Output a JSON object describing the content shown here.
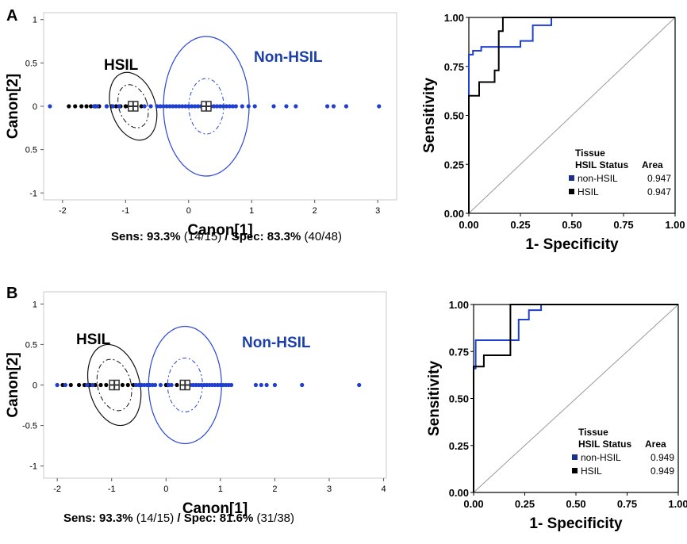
{
  "chart_data": [
    {
      "panel": "A",
      "type": "scatter",
      "xlabel": "Canon[1]",
      "ylabel": "Canon[2]",
      "xticks": [
        "-2",
        "-1",
        "0",
        "1",
        "2",
        "3"
      ],
      "yticks": [
        "1",
        "0.5",
        "0",
        "0.5",
        "-1"
      ],
      "xlim": [
        -2.3,
        3.3
      ],
      "ylim": [
        -1.08,
        1.08
      ],
      "groups": [
        {
          "name": "HSIL",
          "color": "#000000",
          "label_color": "#000000",
          "centroid": [
            -0.88,
            0
          ],
          "x": [
            -1.9,
            -1.8,
            -1.7,
            -1.62,
            -1.55,
            -1.48,
            -1.42,
            -1.3,
            -1.22,
            -1.15,
            -1.08,
            -1.0,
            -0.95,
            -0.85,
            -0.75
          ]
        },
        {
          "name": "Non-HSIL",
          "color": "#1f3fd1",
          "label_color": "#1b3fa6",
          "centroid": [
            0.28,
            0
          ],
          "x": [
            -2.2,
            -1.5,
            -1.45,
            -1.3,
            -1.2,
            -1.1,
            -0.7,
            -0.6,
            -0.5,
            -0.45,
            -0.4,
            -0.35,
            -0.3,
            -0.25,
            -0.2,
            -0.15,
            -0.1,
            -0.05,
            0.0,
            0.05,
            0.1,
            0.15,
            0.2,
            0.25,
            0.3,
            0.35,
            0.4,
            0.45,
            0.5,
            0.55,
            0.6,
            0.65,
            0.7,
            0.75,
            0.85,
            0.95,
            1.05,
            1.35,
            1.55,
            1.7,
            2.2,
            2.3,
            2.5,
            3.02
          ]
        }
      ],
      "footer": {
        "sens_label": "Sens:",
        "sens_pct": "93.3%",
        "sens_frac": "(14/15)",
        "spec_label": "/ Spec:",
        "spec_pct": "83.3%",
        "spec_frac": "(40/48)"
      }
    },
    {
      "panel": "A",
      "type": "line",
      "xlabel": "1- Specificity",
      "ylabel": "Sensitivity",
      "xticks": [
        "0.00",
        "0.25",
        "0.50",
        "0.75",
        "1.00"
      ],
      "yticks": [
        "0.00",
        "0.25",
        "0.50",
        "0.75",
        "1.00"
      ],
      "xlim": [
        0,
        1
      ],
      "ylim": [
        0,
        1
      ],
      "legend": {
        "title1": "Tissue",
        "title2": "HSIL Status",
        "area_label": "Area",
        "placement": "bottom-right"
      },
      "series": [
        {
          "name": "non-HSIL",
          "color": "#1f3fd1",
          "area": "0.947",
          "x": [
            0,
            0,
            0.02,
            0.02,
            0.06,
            0.06,
            0.25,
            0.25,
            0.31,
            0.31,
            0.4,
            0.4,
            1.0
          ],
          "y": [
            0,
            0.81,
            0.81,
            0.83,
            0.83,
            0.85,
            0.85,
            0.88,
            0.88,
            0.96,
            0.96,
            1.0,
            1.0
          ]
        },
        {
          "name": "HSIL",
          "color": "#000000",
          "area": "0.947",
          "x": [
            0,
            0,
            0.05,
            0.05,
            0.1,
            0.1,
            0.125,
            0.125,
            0.145,
            0.145,
            0.165,
            0.165,
            0.19,
            0.19,
            1.0
          ],
          "y": [
            0,
            0.6,
            0.6,
            0.67,
            0.67,
            0.67,
            0.67,
            0.73,
            0.73,
            0.93,
            0.93,
            1.0,
            1.0,
            1.0,
            1.0
          ]
        }
      ]
    },
    {
      "panel": "B",
      "type": "scatter",
      "xlabel": "Canon[1]",
      "ylabel": "Canon[2]",
      "xticks": [
        "-2",
        "-1",
        "0",
        "1",
        "2",
        "3",
        "4"
      ],
      "yticks": [
        "1",
        "0.5",
        "0",
        "-0.5",
        "-1"
      ],
      "xlim": [
        -2.25,
        4.05
      ],
      "ylim": [
        -1.15,
        1.15
      ],
      "groups": [
        {
          "name": "HSIL",
          "color": "#000000",
          "label_color": "#000000",
          "centroid": [
            -0.95,
            0
          ],
          "x": [
            -1.9,
            -1.75,
            -1.6,
            -1.5,
            -1.4,
            -1.3,
            -1.2,
            -1.1,
            -1.0,
            -0.9,
            -0.8,
            -0.7,
            -0.6,
            0.0,
            0.2
          ]
        },
        {
          "name": "Non-HSIL",
          "color": "#1f3fd1",
          "label_color": "#1b3fa6",
          "centroid": [
            0.35,
            0
          ],
          "x": [
            -2.0,
            -1.85,
            -1.45,
            -1.35,
            -0.55,
            -0.5,
            -0.45,
            -0.4,
            -0.35,
            -0.3,
            -0.25,
            -0.2,
            -0.1,
            0.05,
            0.1,
            0.3,
            0.4,
            0.45,
            0.5,
            0.55,
            0.6,
            0.65,
            0.7,
            0.75,
            0.8,
            0.85,
            0.9,
            0.95,
            1.0,
            1.05,
            1.1,
            1.15,
            1.2,
            1.65,
            1.75,
            1.85,
            2.0,
            2.5,
            3.55
          ]
        }
      ],
      "footer": {
        "sens_label": "Sens:",
        "sens_pct": "93.3%",
        "sens_frac": "(14/15)",
        "spec_label": "/ Spec:",
        "spec_pct": "81.6%",
        "spec_frac": "(31/38)"
      }
    },
    {
      "panel": "B",
      "type": "line",
      "xlabel": "1- Specificity",
      "ylabel": "Sensitivity",
      "xticks": [
        "0.00",
        "0.25",
        "0.50",
        "0.75",
        "1.00"
      ],
      "yticks": [
        "0.00",
        "0.25",
        "0.50",
        "0.75",
        "1.00"
      ],
      "xlim": [
        0,
        1
      ],
      "ylim": [
        0,
        1
      ],
      "legend": {
        "title1": "Tissue",
        "title2": "HSIL Status",
        "area_label": "Area",
        "placement": "bottom-right"
      },
      "series": [
        {
          "name": "non-HSIL",
          "color": "#1f3fd1",
          "area": "0.949",
          "x": [
            0,
            0,
            0.01,
            0.01,
            0.22,
            0.22,
            0.27,
            0.27,
            0.33,
            0.33,
            1.0
          ],
          "y": [
            0,
            0.66,
            0.66,
            0.81,
            0.81,
            0.92,
            0.92,
            0.97,
            0.97,
            1.0,
            1.0
          ]
        },
        {
          "name": "HSIL",
          "color": "#000000",
          "area": "0.949",
          "x": [
            0,
            0,
            0.02,
            0.02,
            0.05,
            0.05,
            0.18,
            0.18,
            1.0
          ],
          "y": [
            0,
            0.67,
            0.67,
            0.67,
            0.67,
            0.73,
            0.73,
            1.0,
            1.0
          ]
        }
      ]
    }
  ]
}
